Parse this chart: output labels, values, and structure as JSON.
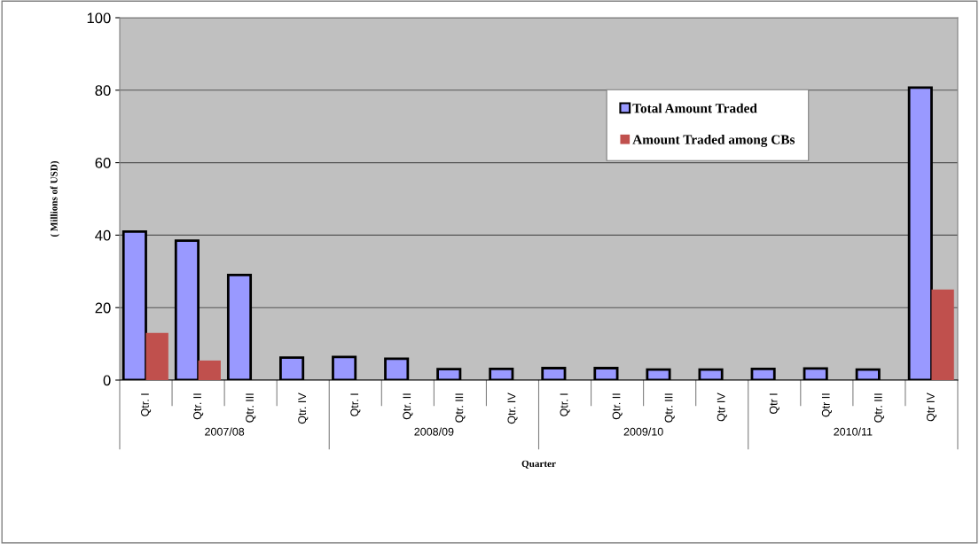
{
  "chart_data": {
    "type": "bar",
    "xlabel": "Quarter",
    "ylabel": "( Millions of USD)",
    "categories": [
      "Qtr. I",
      "Qtr. II",
      "Qtr. III",
      "Qtr. IV",
      "Qtr. I",
      "Qtr. II",
      "Qtr. III",
      "Qtr. IV",
      "Qtr. I",
      "Qtr. II",
      "Qtr. III",
      "Qtr IV",
      "Qtr I",
      "Qtr II",
      "Qtr. III",
      "Qtr IV"
    ],
    "series": [
      {
        "name": "Total Amount Traded",
        "color": "#9999ff",
        "values": [
          41,
          38.5,
          29,
          6.2,
          6.4,
          5.9,
          3.0,
          3.1,
          3.3,
          3.3,
          2.9,
          2.9,
          3.1,
          3.2,
          2.9,
          80.7
        ]
      },
      {
        "name": "Amount Traded among CBs",
        "color": "#c0504d",
        "values": [
          13,
          5.4,
          null,
          null,
          null,
          null,
          null,
          null,
          null,
          null,
          null,
          null,
          null,
          null,
          null,
          25
        ]
      }
    ],
    "annotations": [
      "2007/08",
      "2008/09",
      "2009/10",
      "2010/11"
    ],
    "ylim": [
      0,
      100
    ],
    "yticks": [
      0,
      20,
      40,
      60,
      80,
      100
    ],
    "grid": "y",
    "legend": "top right"
  }
}
